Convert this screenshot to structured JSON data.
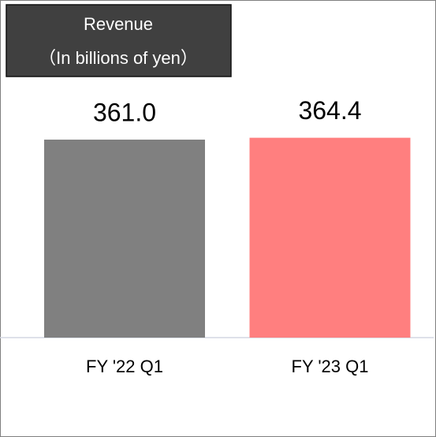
{
  "chart_data": {
    "type": "bar",
    "title": "Revenue",
    "subtitle": "（In billions of yen）",
    "categories": [
      "FY '22 Q1",
      "FY '23 Q1"
    ],
    "values": [
      361.0,
      364.4
    ],
    "value_labels": [
      "361.0",
      "364.4"
    ],
    "colors": [
      "#808080",
      "#ff7f7f"
    ]
  }
}
